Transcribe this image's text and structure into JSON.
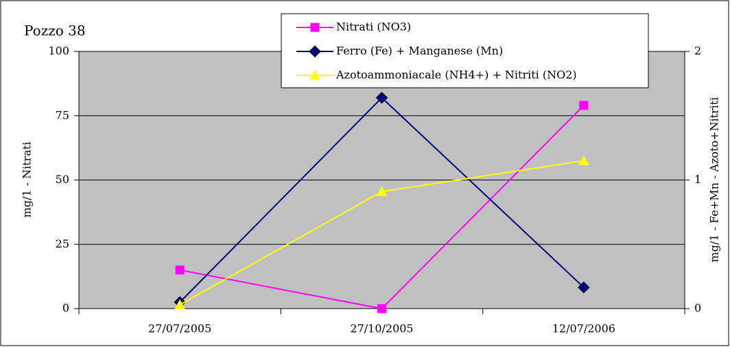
{
  "chart_data": {
    "type": "line",
    "title": "Pozzo 38",
    "categories": [
      "27/07/2005",
      "27/10/2005",
      "12/07/2006"
    ],
    "ylabel": "mg/1 - Nitrati",
    "y2label": "mg/1 - Fe+Mn - Azoto+Nitriti",
    "ylim": [
      0,
      100
    ],
    "yticks": [
      0,
      25,
      50,
      75,
      100
    ],
    "y2lim": [
      0,
      2
    ],
    "y2ticks": [
      0,
      1,
      2
    ],
    "grid": true,
    "legend": "top",
    "series": [
      {
        "name": "Nitrati (NO3)",
        "color": "#ff00ff",
        "marker": "square",
        "values": [
          15,
          0,
          79
        ]
      },
      {
        "name": "Ferro (Fe) + Manganese (Mn)",
        "color": "#000080",
        "marker": "diamond",
        "axis": "y2",
        "values": [
          0.05,
          1.64,
          0.165
        ]
      },
      {
        "name": "Azotoammoniacale (NH4+) + Nitriti (NO2)",
        "color": "#ffff00",
        "marker": "triangle",
        "axis": "y2",
        "values": [
          0.03,
          0.91,
          1.15
        ]
      }
    ]
  }
}
